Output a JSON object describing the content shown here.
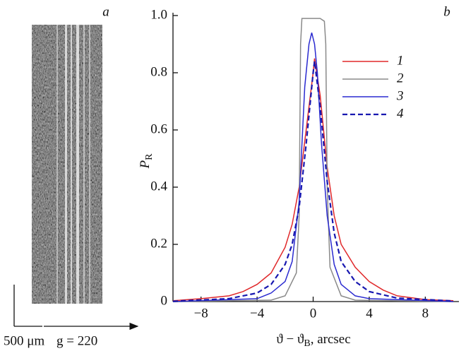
{
  "image_panel": {
    "label": "a",
    "scale_bar": "500 μm",
    "vector": "g = 220"
  },
  "chart_data": {
    "type": "line",
    "label": "b",
    "xlabel": [
      "ϑ − ϑ",
      "B",
      ", arcsec"
    ],
    "ylabel": [
      "P",
      "R"
    ],
    "xlim": [
      -10,
      10.4
    ],
    "ylim": [
      0,
      1.0
    ],
    "xticks": [
      {
        "value": -8,
        "label": "−8"
      },
      {
        "value": -4,
        "label": "−4"
      },
      0,
      4,
      8
    ],
    "yticks": [
      0,
      0.2,
      0.4,
      0.6,
      0.8,
      {
        "value": 1.0,
        "label": "1.0"
      }
    ],
    "series": [
      {
        "name": "1",
        "color": "#e0282a",
        "dash": false,
        "x": [
          -10,
          -8,
          -6,
          -5,
          -4,
          -3,
          -2,
          -1.5,
          -1,
          -0.5,
          0,
          0.1,
          0.5,
          1,
          1.5,
          2,
          3,
          4,
          5,
          6,
          8,
          10
        ],
        "values": [
          0.003,
          0.01,
          0.02,
          0.035,
          0.06,
          0.1,
          0.19,
          0.27,
          0.4,
          0.6,
          0.8,
          0.85,
          0.72,
          0.47,
          0.3,
          0.2,
          0.12,
          0.07,
          0.04,
          0.02,
          0.007,
          0.003
        ]
      },
      {
        "name": "2",
        "color": "#8a8a8a",
        "dash": false,
        "x": [
          -10,
          -3,
          -2,
          -1.2,
          -1,
          -0.9,
          -0.8,
          0.5,
          0.8,
          0.9,
          1,
          1.2,
          2,
          3,
          10
        ],
        "values": [
          0,
          0.005,
          0.02,
          0.1,
          0.3,
          0.9,
          0.99,
          0.99,
          0.98,
          0.9,
          0.4,
          0.12,
          0.02,
          0.005,
          0
        ]
      },
      {
        "name": "3",
        "color": "#2a2ad0",
        "dash": false,
        "x": [
          -10,
          -4,
          -3,
          -2,
          -1.5,
          -1,
          -0.6,
          -0.3,
          -0.1,
          0.1,
          0.3,
          0.6,
          1,
          1.5,
          2,
          3,
          4,
          10
        ],
        "values": [
          0,
          0.01,
          0.03,
          0.07,
          0.14,
          0.35,
          0.75,
          0.9,
          0.94,
          0.9,
          0.8,
          0.55,
          0.3,
          0.13,
          0.06,
          0.02,
          0.01,
          0
        ]
      },
      {
        "name": "4",
        "color": "#1818b0",
        "dash": true,
        "x": [
          -10,
          -6,
          -4,
          -3,
          -2,
          -1.5,
          -1,
          -0.5,
          0,
          0.1,
          0.5,
          1,
          1.5,
          2,
          3,
          4,
          6,
          10
        ],
        "values": [
          0.001,
          0.01,
          0.03,
          0.06,
          0.13,
          0.2,
          0.33,
          0.55,
          0.8,
          0.84,
          0.68,
          0.42,
          0.24,
          0.14,
          0.07,
          0.035,
          0.012,
          0.002
        ]
      }
    ]
  }
}
